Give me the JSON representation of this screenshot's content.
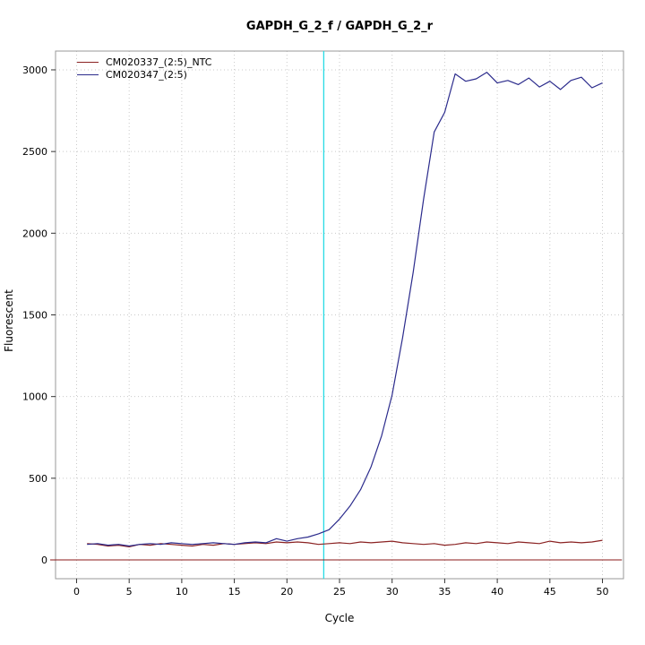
{
  "chart_data": {
    "type": "line",
    "title": "GAPDH_G_2_f / GAPDH_G_2_r",
    "xlabel": "Cycle",
    "ylabel": "Fluorescent",
    "x_ticks": [
      0,
      5,
      10,
      15,
      20,
      25,
      30,
      35,
      40,
      45,
      50
    ],
    "y_ticks": [
      0,
      500,
      1000,
      1500,
      2000,
      2500,
      3000
    ],
    "x_domain": [
      -2,
      52
    ],
    "y_domain": [
      -115,
      3115
    ],
    "grid": "dotted",
    "grid_color": "#c9c9c9",
    "box_color": "#9a9a9a",
    "threshold_line": {
      "y": 0,
      "color": "#8b1a1a"
    },
    "ct_line": {
      "x": 23.5,
      "color": "#27dbe4"
    },
    "legend_position": "top-left",
    "series": [
      {
        "name": "CM020337_(2:5)_NTC",
        "color": "#8b2323",
        "x_start": 1,
        "values": [
          100,
          95,
          85,
          90,
          80,
          95,
          90,
          100,
          95,
          90,
          85,
          95,
          90,
          100,
          95,
          100,
          105,
          100,
          110,
          105,
          110,
          105,
          95,
          100,
          105,
          100,
          110,
          105,
          110,
          115,
          105,
          100,
          95,
          100,
          90,
          95,
          105,
          100,
          110,
          105,
          100,
          110,
          105,
          100,
          115,
          105,
          110,
          105,
          110,
          120
        ]
      },
      {
        "name": "CM020347_(2:5)",
        "color": "#2b2b8c",
        "x_start": 1,
        "values": [
          95,
          100,
          90,
          95,
          85,
          95,
          100,
          95,
          105,
          100,
          95,
          100,
          105,
          100,
          95,
          105,
          110,
          105,
          130,
          115,
          130,
          140,
          160,
          185,
          250,
          330,
          430,
          570,
          760,
          1010,
          1360,
          1760,
          2210,
          2620,
          2740,
          2975,
          2930,
          2945,
          2985,
          2920,
          2935,
          2910,
          2950,
          2895,
          2930,
          2880,
          2935,
          2955,
          2890,
          2920
        ]
      }
    ]
  }
}
